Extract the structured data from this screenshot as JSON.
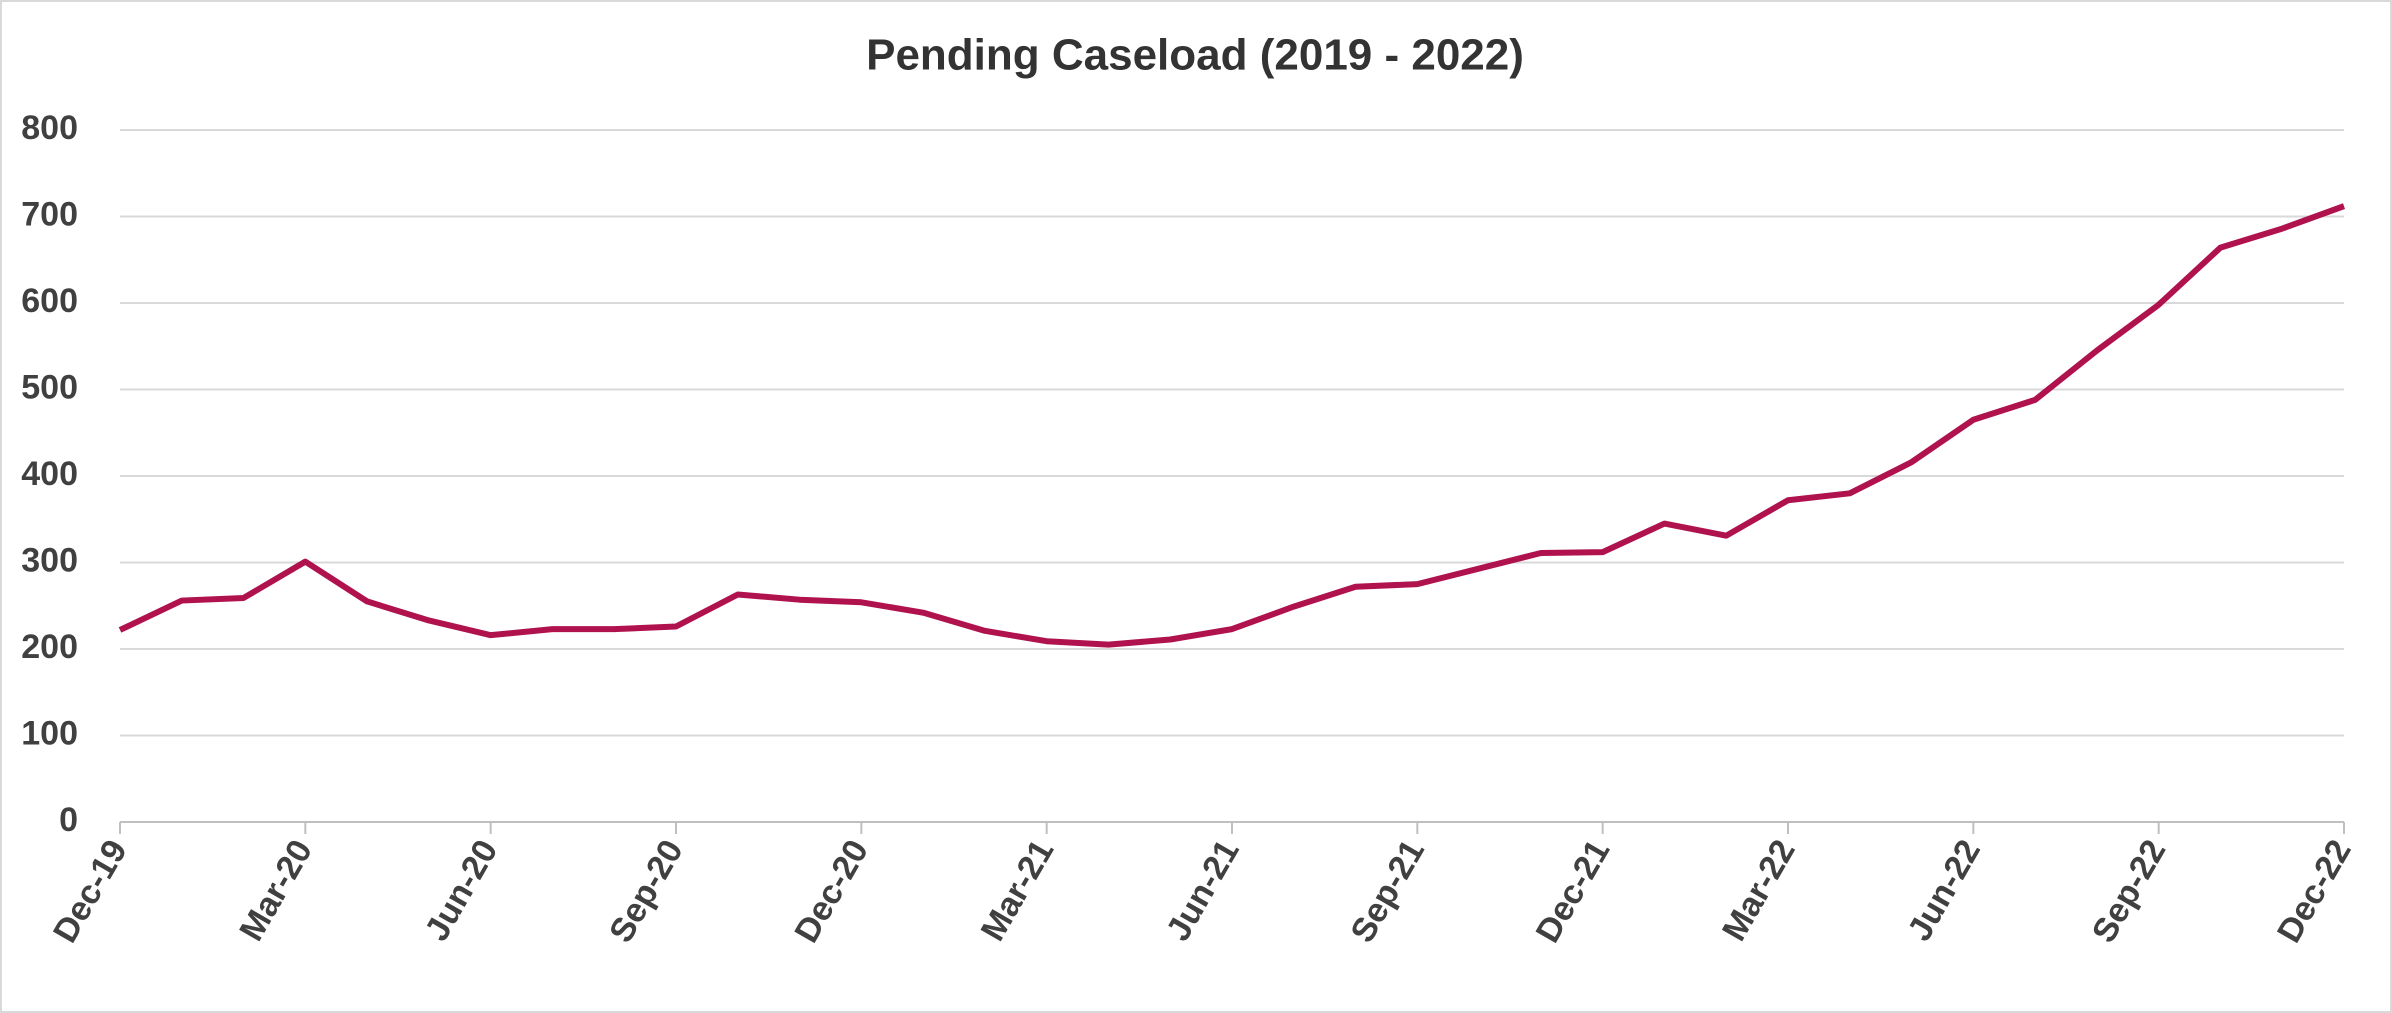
{
  "chart_data": {
    "type": "line",
    "title": "Pending Caseload (2019 - 2022)",
    "categories": [
      "Dec-19",
      null,
      null,
      "Mar-20",
      null,
      null,
      "Jun-20",
      null,
      null,
      "Sep-20",
      null,
      null,
      "Dec-20",
      null,
      null,
      "Mar-21",
      null,
      null,
      "Jun-21",
      null,
      null,
      "Sep-21",
      null,
      null,
      "Dec-21",
      null,
      null,
      "Mar-22",
      null,
      null,
      "Jun-22",
      null,
      null,
      "Sep-22",
      null,
      null,
      "Dec-22"
    ],
    "series": [
      {
        "name": "Pending Caseload",
        "color": "#b0124e",
        "values": [
          222,
          256,
          259,
          301,
          255,
          233,
          216,
          223,
          223,
          226,
          263,
          257,
          254,
          242,
          221,
          209,
          205,
          211,
          223,
          249,
          272,
          275,
          293,
          311,
          312,
          345,
          331,
          372,
          380,
          416,
          465,
          488,
          545,
          598,
          664,
          686,
          712
        ]
      }
    ],
    "ylim": [
      0,
      800
    ],
    "yticks": [
      0,
      100,
      200,
      300,
      400,
      500,
      600,
      700,
      800
    ],
    "grid": true
  }
}
